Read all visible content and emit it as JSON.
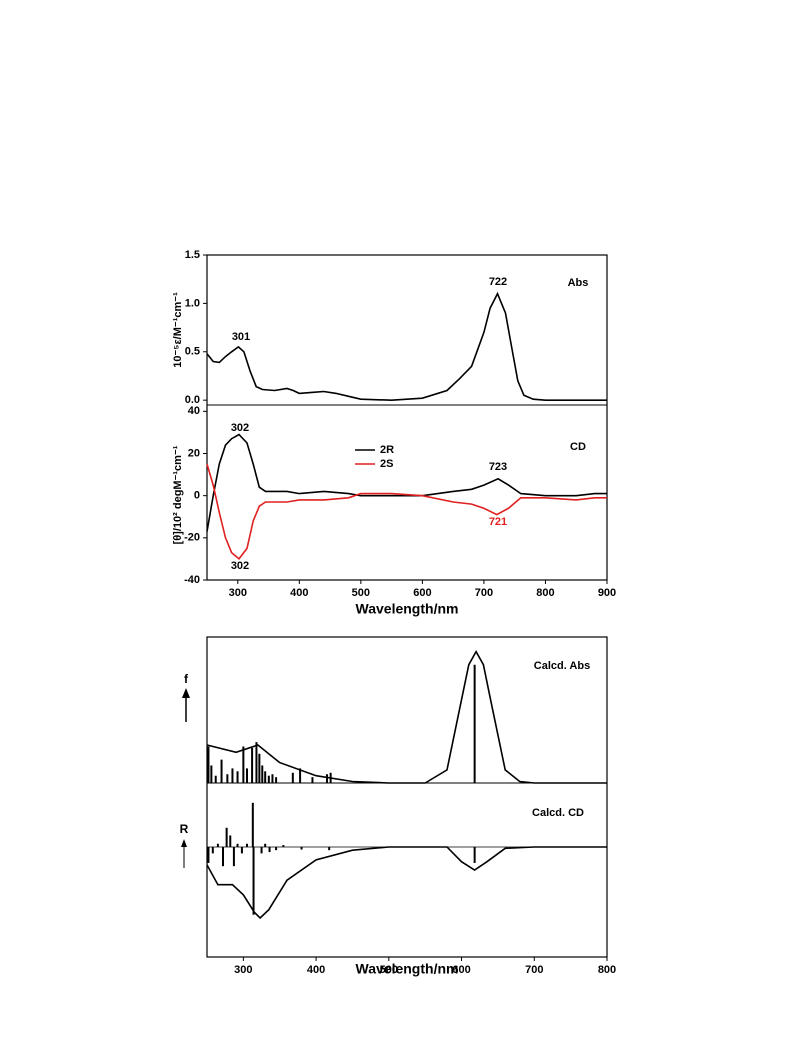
{
  "chart_data": [
    {
      "type": "line",
      "ylabel": "10⁻⁵ε/M⁻¹cm⁻¹",
      "label": "Abs",
      "xlim": [
        250,
        900
      ],
      "ylim": [
        -0.05,
        1.5
      ],
      "yticks": [
        {
          "value": 0,
          "label": "0.0"
        },
        0.5,
        {
          "value": 1,
          "label": "1.0"
        },
        1.5
      ],
      "annotations": [
        {
          "text": "301"
        },
        {
          "text": "722"
        }
      ],
      "series": [
        {
          "color": "#000000",
          "x": [
            250,
            260,
            270,
            280,
            290,
            301,
            310,
            320,
            330,
            340,
            360,
            380,
            390,
            400,
            420,
            440,
            460,
            480,
            500,
            550,
            600,
            640,
            660,
            680,
            700,
            710,
            722,
            735,
            745,
            755,
            765,
            780,
            800,
            900
          ],
          "values": [
            0.48,
            0.4,
            0.39,
            0.45,
            0.5,
            0.55,
            0.5,
            0.3,
            0.14,
            0.11,
            0.1,
            0.12,
            0.1,
            0.07,
            0.08,
            0.09,
            0.07,
            0.04,
            0.01,
            0.0,
            0.02,
            0.1,
            0.22,
            0.35,
            0.7,
            0.95,
            1.1,
            0.9,
            0.55,
            0.2,
            0.05,
            0.01,
            0.0,
            0.0
          ]
        }
      ]
    },
    {
      "type": "line",
      "ylabel": "[θ]/10² degM⁻¹cm⁻¹",
      "label": "CD",
      "xlabel": "Wavelength/nm",
      "xlim": [
        250,
        900
      ],
      "ylim": [
        -40,
        43
      ],
      "xticks": [
        300,
        400,
        500,
        600,
        700,
        800,
        900
      ],
      "yticks": [
        -40,
        -20,
        0,
        20,
        40
      ],
      "annotations": [
        {
          "text": "302"
        },
        {
          "text": "302"
        },
        {
          "text": "723"
        },
        {
          "text": "721",
          "color": "#e02020"
        }
      ],
      "series": [
        {
          "name": "2R",
          "color": "#000000",
          "x": [
            250,
            260,
            270,
            280,
            290,
            302,
            315,
            325,
            335,
            345,
            380,
            400,
            440,
            480,
            500,
            600,
            650,
            680,
            700,
            723,
            740,
            760,
            800,
            850,
            880,
            900
          ],
          "values": [
            -17,
            0,
            15,
            24,
            27,
            29,
            25,
            15,
            4,
            2,
            2,
            1,
            2,
            1,
            0,
            0,
            2,
            3,
            5,
            8,
            5,
            1,
            0,
            0,
            1,
            1
          ]
        },
        {
          "name": "2S",
          "color": "#e02020",
          "x": [
            250,
            260,
            270,
            280,
            290,
            302,
            315,
            325,
            335,
            345,
            380,
            400,
            440,
            480,
            500,
            550,
            600,
            650,
            680,
            700,
            721,
            740,
            760,
            800,
            850,
            880,
            900
          ],
          "values": [
            15,
            5,
            -8,
            -20,
            -27,
            -30,
            -25,
            -12,
            -5,
            -3,
            -3,
            -2,
            -2,
            -1,
            1,
            1,
            0,
            -3,
            -4,
            -6,
            -9,
            -6,
            -1,
            -1,
            -2,
            -1,
            -1
          ]
        }
      ]
    },
    {
      "type": "line",
      "ylabel": "f",
      "label": "Calcd. Abs",
      "xlim": [
        250,
        800
      ],
      "ylim": [
        0,
        1
      ],
      "series": [
        {
          "color": "#000000",
          "x": [
            250,
            290,
            320,
            350,
            400,
            450,
            500,
            550,
            580,
            600,
            610,
            620,
            630,
            640,
            660,
            680,
            700,
            800
          ],
          "values": [
            0.26,
            0.21,
            0.26,
            0.14,
            0.05,
            0.01,
            0,
            0,
            0.09,
            0.57,
            0.81,
            0.9,
            0.81,
            0.57,
            0.09,
            0.01,
            0,
            0
          ]
        }
      ],
      "sticks": {
        "color": "#000000",
        "x": [
          252,
          256,
          262,
          270,
          278,
          285,
          292,
          300,
          305,
          312,
          318,
          322,
          326,
          330,
          335,
          340,
          345,
          368,
          378,
          395,
          415,
          420,
          618
        ],
        "values": [
          0.25,
          0.12,
          0.05,
          0.16,
          0.06,
          0.1,
          0.08,
          0.25,
          0.1,
          0.24,
          0.28,
          0.2,
          0.12,
          0.08,
          0.05,
          0.06,
          0.04,
          0.07,
          0.1,
          0.04,
          0.06,
          0.07,
          0.81
        ]
      }
    },
    {
      "type": "line",
      "ylabel": "R",
      "label": "Calcd. CD",
      "xlabel": "Wavelength/nm",
      "xlim": [
        250,
        800
      ],
      "ylim": [
        -1.72,
        1
      ],
      "xticks": [
        300,
        400,
        500,
        600,
        700,
        800
      ],
      "series": [
        {
          "color": "#000000",
          "x": [
            250,
            265,
            285,
            300,
            315,
            323,
            335,
            360,
            400,
            450,
            500,
            580,
            600,
            618,
            635,
            660,
            700,
            800
          ],
          "values": [
            -0.28,
            -0.59,
            -0.59,
            -0.75,
            -1.02,
            -1.11,
            -0.98,
            -0.52,
            -0.2,
            -0.05,
            0,
            0,
            -0.23,
            -0.36,
            -0.23,
            -0.02,
            0,
            0
          ]
        }
      ],
      "sticks": {
        "color": "#000000",
        "x": [
          252,
          258,
          265,
          272,
          277,
          282,
          287,
          292,
          298,
          305,
          313,
          314,
          325,
          330,
          336,
          345,
          355,
          380,
          418,
          618
        ],
        "values": [
          -0.25,
          -0.1,
          0.05,
          -0.3,
          0.3,
          0.18,
          -0.3,
          0.05,
          -0.1,
          0.05,
          0.69,
          -1.06,
          -0.1,
          0.05,
          -0.08,
          -0.05,
          0.03,
          -0.04,
          -0.05,
          -0.25
        ]
      }
    }
  ]
}
